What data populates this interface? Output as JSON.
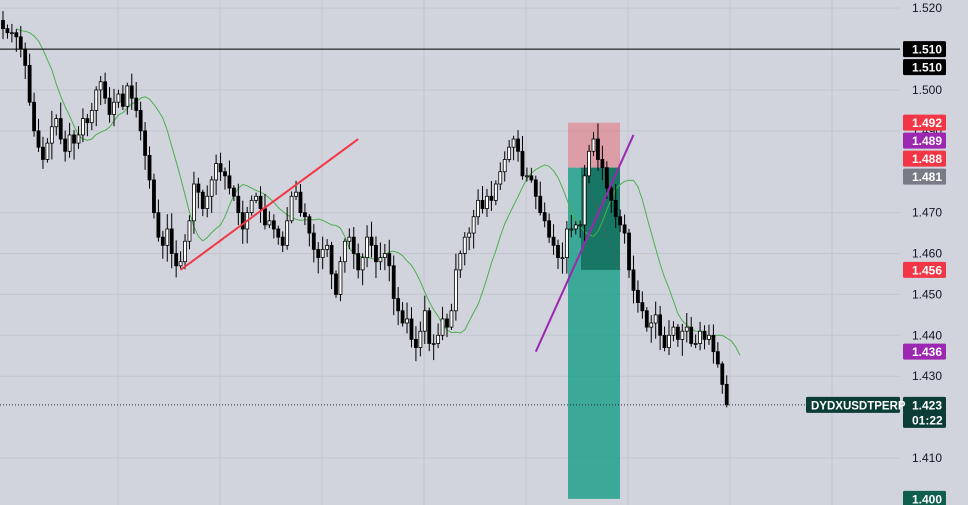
{
  "chart_data": {
    "type": "candlestick",
    "symbol": "DYDXUSDTPERP",
    "countdown": "01:22",
    "ylim": [
      1.3985,
      1.522
    ],
    "y_ticks": [
      "1.520",
      "1.510",
      "1.500",
      "1.490",
      "1.470",
      "1.460",
      "1.450",
      "1.440",
      "1.430",
      "1.410"
    ],
    "price_labels": [
      {
        "value": 1.51,
        "text": "1.510",
        "color": "#000000"
      },
      {
        "value": 1.51,
        "text": "1.510",
        "color": "#000000"
      },
      {
        "value": 1.492,
        "text": "1.492",
        "color": "#f23645"
      },
      {
        "value": 1.489,
        "text": "1.489",
        "color": "#9c27b0"
      },
      {
        "value": 1.488,
        "text": "1.488",
        "color": "#f23645"
      },
      {
        "value": 1.481,
        "text": "1.481",
        "color": "#787b86"
      },
      {
        "value": 1.456,
        "text": "1.456",
        "color": "#f23645"
      },
      {
        "value": 1.436,
        "text": "1.436",
        "color": "#9c27b0"
      },
      {
        "value": 1.423,
        "text": "1.423",
        "color": "#0b3d36"
      },
      {
        "value": 1.4,
        "text": "1.400",
        "color": "#0f5e4e"
      }
    ],
    "horizontal_line": 1.51,
    "last_price": 1.423,
    "position": {
      "type": "short",
      "entry": 1.481,
      "stop": 1.492,
      "target": 1.4
    },
    "trend_segments": [
      {
        "from": [
          0,
          1.456
        ],
        "to": [
          40,
          1.488
        ],
        "color": "#f23645"
      },
      {
        "from": [
          80,
          1.436
        ],
        "to": [
          102,
          1.489
        ],
        "color": "#9c27b0"
      }
    ],
    "closes": [
      1.515,
      1.514,
      1.514,
      1.513,
      1.51,
      1.506,
      1.497,
      1.49,
      1.486,
      1.483,
      1.487,
      1.491,
      1.493,
      1.488,
      1.485,
      1.489,
      1.487,
      1.489,
      1.493,
      1.492,
      1.495,
      1.5,
      1.502,
      1.498,
      1.494,
      1.497,
      1.499,
      1.496,
      1.501,
      1.498,
      1.495,
      1.49,
      1.484,
      1.478,
      1.47,
      1.464,
      1.462,
      1.466,
      1.46,
      1.457,
      1.458,
      1.463,
      1.468,
      1.477,
      1.475,
      1.471,
      1.474,
      1.478,
      1.482,
      1.48,
      1.479,
      1.476,
      1.474,
      1.47,
      1.466,
      1.47,
      1.473,
      1.474,
      1.471,
      1.467,
      1.468,
      1.466,
      1.464,
      1.462,
      1.468,
      1.474,
      1.475,
      1.47,
      1.469,
      1.465,
      1.461,
      1.459,
      1.461,
      1.462,
      1.455,
      1.45,
      1.458,
      1.463,
      1.464,
      1.46,
      1.456,
      1.459,
      1.464,
      1.462,
      1.458,
      1.459,
      1.46,
      1.457,
      1.449,
      1.446,
      1.443,
      1.444,
      1.439,
      1.437,
      1.441,
      1.446,
      1.438,
      1.438,
      1.44,
      1.444,
      1.442,
      1.446,
      1.456,
      1.46,
      1.464,
      1.465,
      1.469,
      1.473,
      1.471,
      1.474,
      1.473,
      1.477,
      1.48,
      1.483,
      1.486,
      1.488,
      1.485,
      1.479,
      1.479,
      1.478,
      1.474,
      1.47,
      1.468,
      1.464,
      1.462,
      1.459,
      1.459,
      1.466,
      1.466,
      1.467,
      1.467,
      1.479,
      1.485,
      1.488,
      1.483,
      1.481,
      1.476,
      1.473,
      1.469,
      1.467,
      1.465,
      1.456,
      1.451,
      1.448,
      1.446,
      1.442,
      1.443,
      1.445,
      1.44,
      1.437,
      1.44,
      1.442,
      1.439,
      1.441,
      1.442,
      1.438,
      1.438,
      1.441,
      1.439,
      1.44,
      1.436,
      1.433,
      1.428,
      1.423
    ]
  }
}
